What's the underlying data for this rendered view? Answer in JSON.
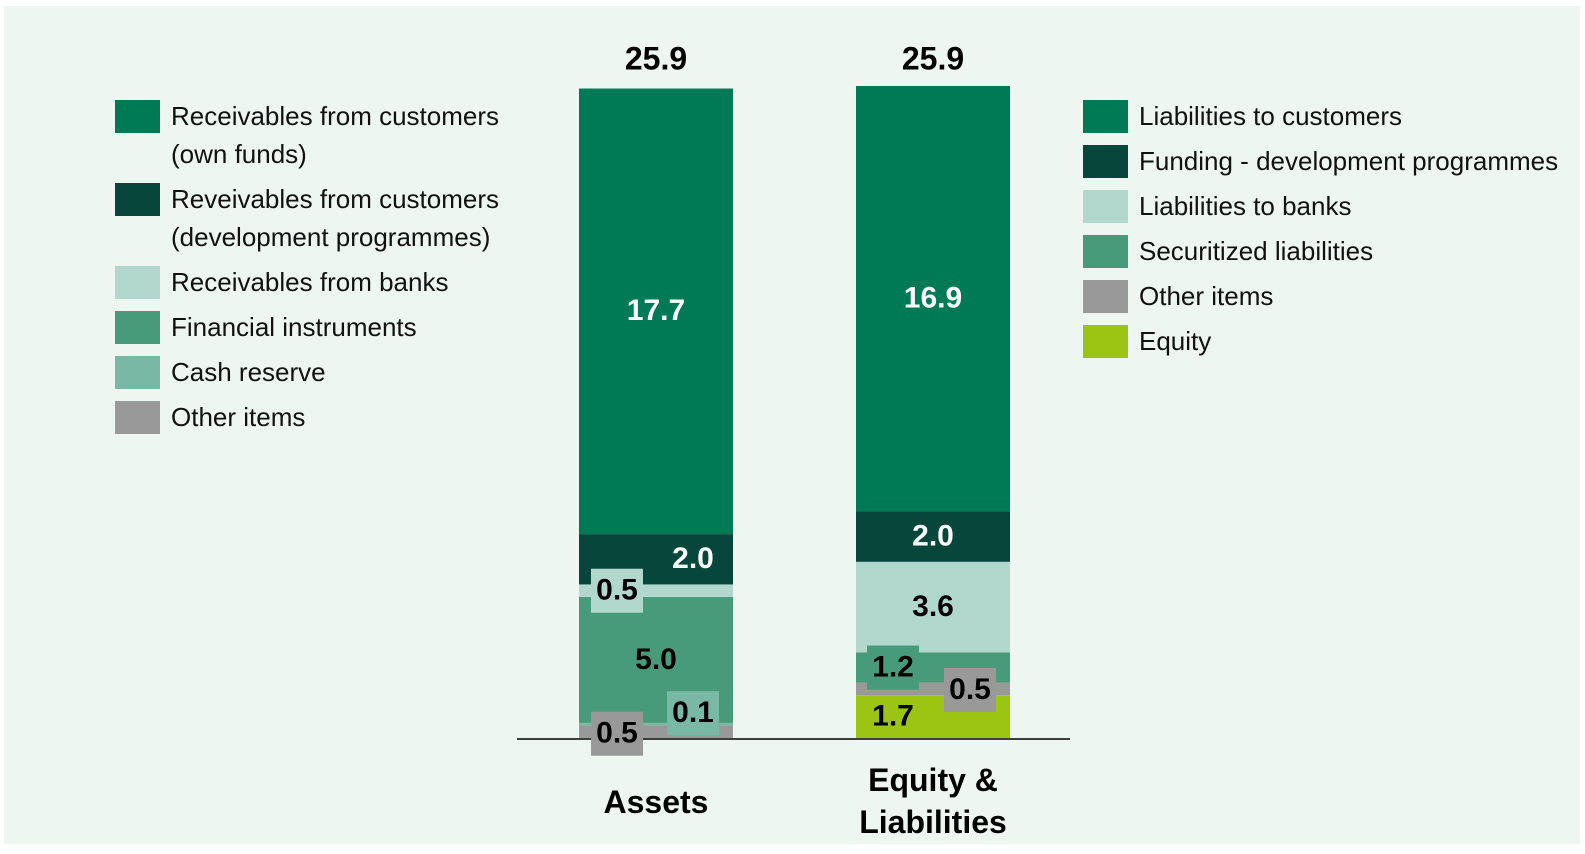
{
  "chart_data": [
    {
      "type": "bar",
      "categories": [
        "Assets"
      ],
      "total": 25.9,
      "legend": "left",
      "series": [
        {
          "name": "Receivables from customers (own funds)",
          "color": "#007a55",
          "values": [
            17.7
          ],
          "value_labels": [
            "17.7"
          ]
        },
        {
          "name": "Reveivables from customers (development programmes)",
          "color": "#07463a",
          "values": [
            2.0
          ],
          "value_labels": [
            "2.0"
          ]
        },
        {
          "name": "Receivables from banks",
          "color": "#b2d8cd",
          "values": [
            0.5
          ],
          "value_labels": [
            "0.5"
          ]
        },
        {
          "name": "Financial instruments",
          "color": "#479a7a",
          "values": [
            5.0
          ],
          "value_labels": [
            "5.0"
          ]
        },
        {
          "name": "Cash reserve",
          "color": "#79b8a5",
          "values": [
            0.1
          ],
          "value_labels": [
            "0.1"
          ]
        },
        {
          "name": "Other items",
          "color": "#999999",
          "values": [
            0.5
          ],
          "value_labels": [
            "0.5"
          ]
        }
      ]
    },
    {
      "type": "bar",
      "categories": [
        "Equity & Liabilities"
      ],
      "total": 25.9,
      "legend": "right",
      "series": [
        {
          "name": "Liabilities to customers",
          "color": "#007a55",
          "values": [
            16.9
          ],
          "value_labels": [
            "16.9"
          ]
        },
        {
          "name": "Funding - development programmes",
          "color": "#07463a",
          "values": [
            2.0
          ],
          "value_labels": [
            "2.0"
          ]
        },
        {
          "name": "Liabilities to banks",
          "color": "#b2d8cd",
          "values": [
            3.6
          ],
          "value_labels": [
            "3.6"
          ]
        },
        {
          "name": "Securitized liabilities",
          "color": "#479a7a",
          "values": [
            1.2
          ],
          "value_labels": [
            "1.2"
          ]
        },
        {
          "name": "Other items",
          "color": "#999999",
          "values": [
            0.5
          ],
          "value_labels": [
            "0.5"
          ]
        },
        {
          "name": "Equity",
          "color": "#9bc413",
          "values": [
            1.7
          ],
          "value_labels": [
            "1.7"
          ]
        }
      ]
    }
  ]
}
